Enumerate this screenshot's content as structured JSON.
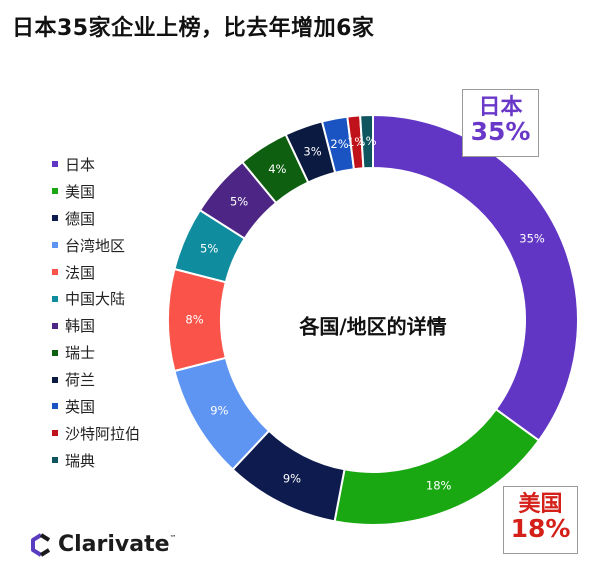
{
  "title": "日本35家企业上榜，比去年增加6家",
  "center_label": "各国/地区的详情",
  "callouts": {
    "japan": {
      "name": "日本",
      "pct": "35%"
    },
    "usa": {
      "name": "美国",
      "pct": "18%"
    }
  },
  "logo": {
    "text": "Clarivate",
    "tm": "™"
  },
  "chart_data": {
    "type": "pie",
    "donut": true,
    "title": "日本35家企业上榜，比去年增加6家",
    "center_text": "各国/地区的详情",
    "legend_position": "left",
    "categories": [
      "日本",
      "美国",
      "德国",
      "台湾地区",
      "法国",
      "中国大陆",
      "韩国",
      "瑞士",
      "荷兰",
      "英国",
      "沙特阿拉伯",
      "瑞典"
    ],
    "values": [
      35,
      18,
      9,
      9,
      8,
      5,
      5,
      4,
      3,
      2,
      1,
      1
    ],
    "labels": [
      "35%",
      "18%",
      "9%",
      "9%",
      "8%",
      "5%",
      "5%",
      "4%",
      "3%",
      "2%",
      "1%",
      "1%"
    ],
    "colors": [
      "#6236c4",
      "#19a811",
      "#0d1b4e",
      "#5f95f2",
      "#fa544a",
      "#0f8c9e",
      "#4c2585",
      "#0f5f10",
      "#0b1a40",
      "#1a53c2",
      "#c0121a",
      "#0f5560"
    ]
  }
}
